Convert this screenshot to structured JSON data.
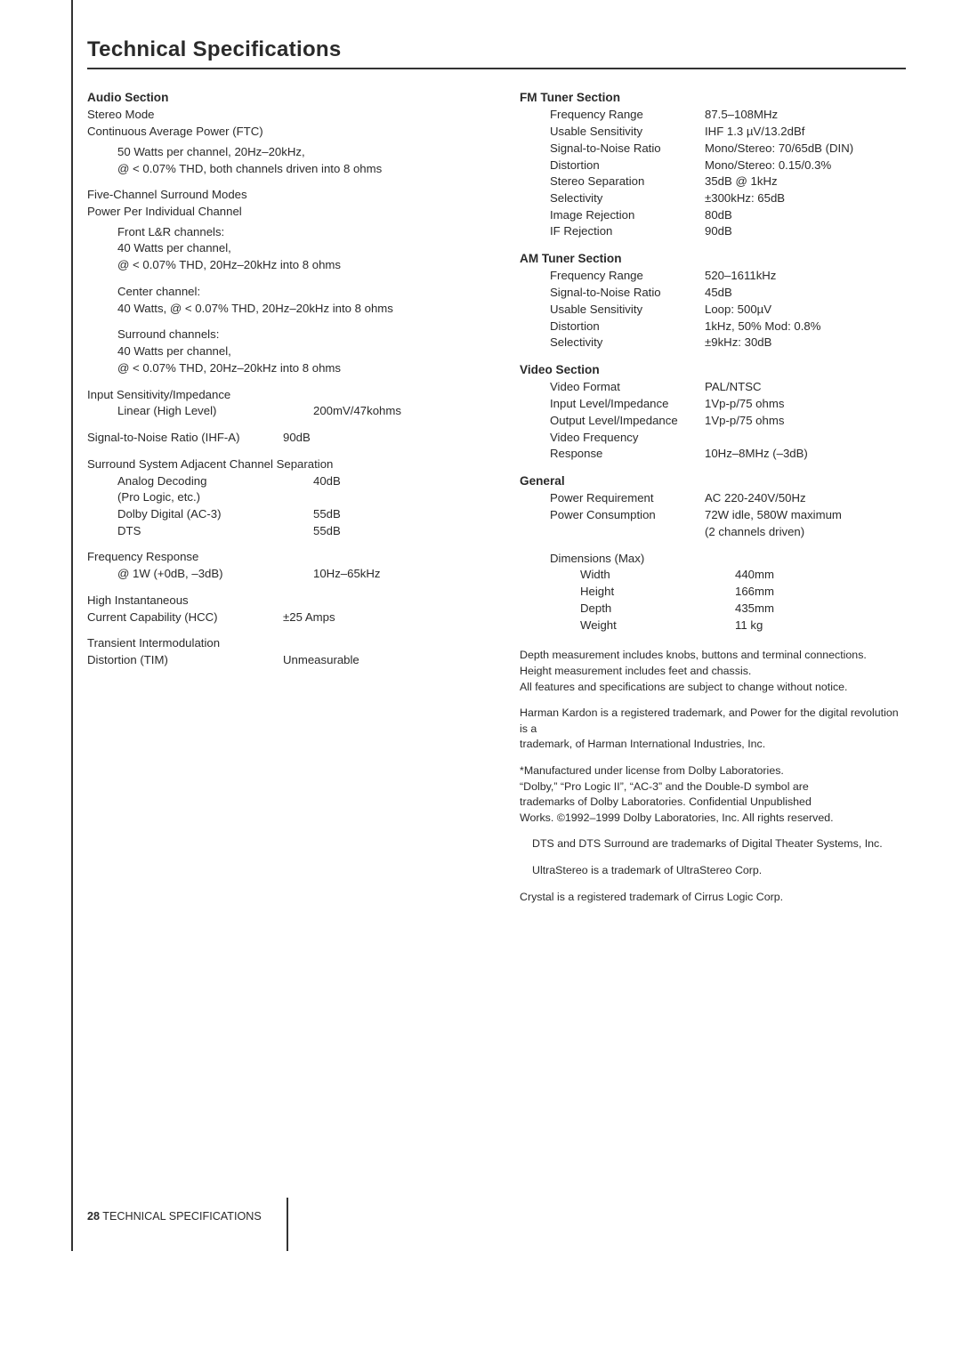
{
  "title": "Technical Specifications",
  "footer": {
    "page": "28",
    "label": "TECHNICAL SPECIFICATIONS"
  },
  "left": {
    "audio": {
      "heading": "Audio Section",
      "stereo_mode": "Stereo Mode",
      "cap": "Continuous Average Power (FTC)",
      "cap_l1": "50 Watts per channel, 20Hz–20kHz,",
      "cap_l2": "@ < 0.07% THD, both channels driven into 8 ohms",
      "five": "Five-Channel Surround Modes",
      "ppic": "Power Per Individual Channel",
      "front_h": "Front L&R channels:",
      "front_l1": "40 Watts per channel,",
      "front_l2": "@ < 0.07% THD, 20Hz–20kHz into 8 ohms",
      "center_h": "Center channel:",
      "center_l1": "40 Watts, @ < 0.07% THD, 20Hz–20kHz into 8 ohms",
      "surr_h": "Surround channels:",
      "surr_l1": "40 Watts per channel,",
      "surr_l2": "@ < 0.07% THD, 20Hz–20kHz into 8 ohms",
      "isi": "Input Sensitivity/Impedance",
      "isi_k": "Linear (High Level)",
      "isi_v": "200mV/47kohms",
      "snr_k": "Signal-to-Noise Ratio (IHF-A)",
      "snr_v": "90dB",
      "ssacs": "Surround System Adjacent Channel Separation",
      "ad_k": "Analog Decoding",
      "ad_v": "40dB",
      "ad_k2": "(Pro Logic, etc.)",
      "dd_k": "Dolby Digital (AC-3)",
      "dd_v": "55dB",
      "dts_k": "DTS",
      "dts_v": "55dB",
      "fr": "Frequency Response",
      "fr_k": "@ 1W (+0dB, –3dB)",
      "fr_v": "10Hz–65kHz",
      "hi": "High Instantaneous",
      "hcc_k": "Current Capability (HCC)",
      "hcc_v": "±25 Amps",
      "tim1": "Transient Intermodulation",
      "tim_k": "Distortion (TIM)",
      "tim_v": "Unmeasurable"
    }
  },
  "right": {
    "fm": {
      "heading": "FM Tuner Section",
      "rows": [
        [
          "Frequency Range",
          "87.5–108MHz"
        ],
        [
          "Usable Sensitivity",
          "IHF 1.3 µV/13.2dBf"
        ],
        [
          "Signal-to-Noise Ratio",
          "Mono/Stereo: 70/65dB (DIN)"
        ],
        [
          "Distortion",
          "Mono/Stereo: 0.15/0.3%"
        ],
        [
          "Stereo Separation",
          "35dB @ 1kHz"
        ],
        [
          "Selectivity",
          "±300kHz: 65dB"
        ],
        [
          "Image Rejection",
          "80dB"
        ],
        [
          "IF Rejection",
          "90dB"
        ]
      ]
    },
    "am": {
      "heading": "AM Tuner Section",
      "rows": [
        [
          "Frequency Range",
          "520–1611kHz"
        ],
        [
          "Signal-to-Noise Ratio",
          "45dB"
        ],
        [
          "Usable Sensitivity",
          "Loop: 500µV"
        ],
        [
          "Distortion",
          "1kHz, 50% Mod: 0.8%"
        ],
        [
          "Selectivity",
          "±9kHz: 30dB"
        ]
      ]
    },
    "video": {
      "heading": "Video Section",
      "rows": [
        [
          "Video Format",
          "PAL/NTSC"
        ],
        [
          "Input Level/Impedance",
          "1Vp-p/75 ohms"
        ],
        [
          "Output Level/Impedance",
          "1Vp-p/75 ohms"
        ]
      ],
      "vf": "Video Frequency",
      "resp_k": "Response",
      "resp_v": "10Hz–8MHz (–3dB)"
    },
    "general": {
      "heading": "General",
      "pr_k": "Power Requirement",
      "pr_v": "AC 220-240V/50Hz",
      "pc_k": "Power Consumption",
      "pc_v1": "72W idle, 580W maximum",
      "pc_v2": "(2 channels driven)",
      "dim": "Dimensions (Max)",
      "dims": [
        [
          "Width",
          "440mm"
        ],
        [
          "Height",
          "166mm"
        ],
        [
          "Depth",
          "435mm"
        ],
        [
          "Weight",
          "11 kg"
        ]
      ]
    },
    "notes": {
      "p1a": "Depth measurement includes knobs, buttons and terminal connections.",
      "p1b": "Height measurement includes feet and chassis.",
      "p1c": "All features and specifications are subject to change without notice.",
      "p2a": "Harman Kardon is a registered trademark, and Power for the digital revolution is a",
      "p2b": "trademark, of Harman International Industries, Inc.",
      "p3a": "*Manufactured under license from Dolby Laboratories.",
      "p3b": "“Dolby,” “Pro Logic II”, “AC-3” and the Double-D symbol are",
      "p3c": "trademarks of Dolby Laboratories. Confidential Unpublished",
      "p3d": "Works. ©1992–1999 Dolby Laboratories, Inc. All rights reserved.",
      "p4": "DTS and DTS Surround are trademarks of Digital Theater Systems, Inc.",
      "p5": "UltraStereo is a trademark of UltraStereo Corp.",
      "p6": "Crystal is a registered trademark of Cirrus Logic Corp."
    }
  }
}
